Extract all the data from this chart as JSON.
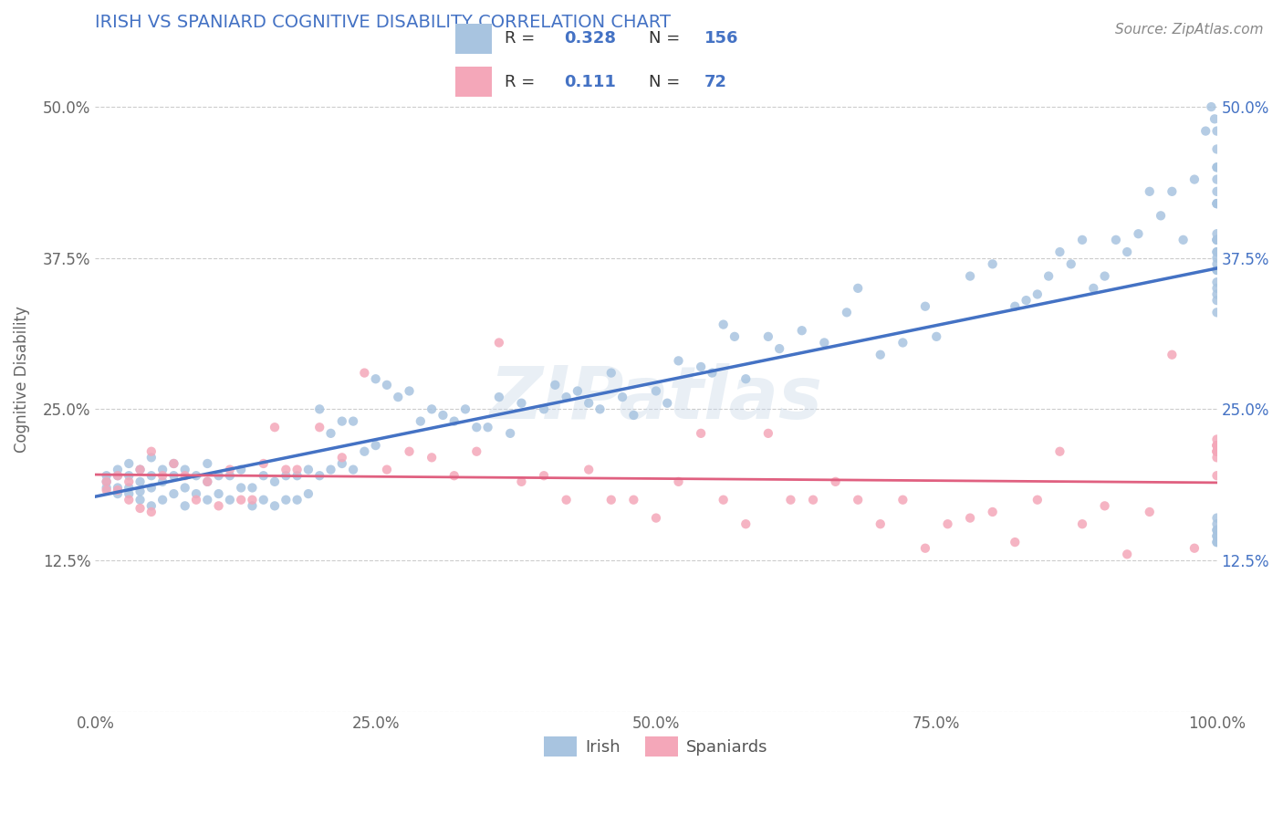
{
  "title": "IRISH VS SPANIARD COGNITIVE DISABILITY CORRELATION CHART",
  "source": "Source: ZipAtlas.com",
  "ylabel": "Cognitive Disability",
  "xlim": [
    0.0,
    1.0
  ],
  "ylim": [
    0.0,
    0.55
  ],
  "xticks": [
    0.0,
    0.25,
    0.5,
    0.75,
    1.0
  ],
  "xtick_labels": [
    "0.0%",
    "25.0%",
    "50.0%",
    "75.0%",
    "100.0%"
  ],
  "yticks": [
    0.0,
    0.125,
    0.25,
    0.375,
    0.5
  ],
  "ytick_labels": [
    "",
    "12.5%",
    "25.0%",
    "37.5%",
    "50.0%"
  ],
  "irish_color": "#a8c4e0",
  "spaniard_color": "#f4a7b9",
  "irish_line_color": "#4472c4",
  "spaniard_line_color": "#e06080",
  "irish_R": "0.328",
  "irish_N": "156",
  "spaniard_R": "0.111",
  "spaniard_N": "72",
  "title_color": "#4472c4",
  "legend_R_N_color": "#4472c4",
  "background_color": "#ffffff",
  "grid_color": "#cccccc",
  "watermark": "ZIPatlas",
  "irish_x": [
    0.01,
    0.01,
    0.01,
    0.02,
    0.02,
    0.02,
    0.02,
    0.03,
    0.03,
    0.03,
    0.03,
    0.04,
    0.04,
    0.04,
    0.04,
    0.05,
    0.05,
    0.05,
    0.05,
    0.06,
    0.06,
    0.06,
    0.07,
    0.07,
    0.07,
    0.08,
    0.08,
    0.08,
    0.09,
    0.09,
    0.1,
    0.1,
    0.1,
    0.11,
    0.11,
    0.12,
    0.12,
    0.13,
    0.13,
    0.14,
    0.14,
    0.15,
    0.15,
    0.16,
    0.16,
    0.17,
    0.17,
    0.18,
    0.18,
    0.19,
    0.19,
    0.2,
    0.2,
    0.21,
    0.21,
    0.22,
    0.22,
    0.23,
    0.23,
    0.24,
    0.25,
    0.25,
    0.26,
    0.27,
    0.28,
    0.29,
    0.3,
    0.31,
    0.32,
    0.33,
    0.34,
    0.35,
    0.36,
    0.37,
    0.38,
    0.4,
    0.41,
    0.42,
    0.43,
    0.44,
    0.45,
    0.46,
    0.47,
    0.48,
    0.5,
    0.51,
    0.52,
    0.54,
    0.55,
    0.56,
    0.57,
    0.58,
    0.6,
    0.61,
    0.63,
    0.65,
    0.67,
    0.68,
    0.7,
    0.72,
    0.74,
    0.75,
    0.78,
    0.8,
    0.82,
    0.83,
    0.84,
    0.85,
    0.86,
    0.87,
    0.88,
    0.89,
    0.9,
    0.91,
    0.92,
    0.93,
    0.94,
    0.95,
    0.96,
    0.97,
    0.98,
    0.99,
    0.995,
    0.998,
    1.0,
    1.0,
    1.0,
    1.0,
    1.0,
    1.0,
    1.0,
    1.0,
    1.0,
    1.0,
    1.0,
    1.0,
    1.0,
    1.0,
    1.0,
    1.0,
    1.0,
    1.0,
    1.0,
    1.0,
    1.0,
    1.0,
    1.0,
    1.0,
    1.0,
    1.0,
    1.0,
    1.0,
    1.0,
    1.0,
    1.0,
    1.0
  ],
  "irish_y": [
    0.195,
    0.19,
    0.185,
    0.2,
    0.195,
    0.185,
    0.18,
    0.205,
    0.195,
    0.185,
    0.18,
    0.2,
    0.19,
    0.182,
    0.175,
    0.21,
    0.195,
    0.185,
    0.17,
    0.2,
    0.19,
    0.175,
    0.205,
    0.195,
    0.18,
    0.2,
    0.185,
    0.17,
    0.195,
    0.18,
    0.205,
    0.19,
    0.175,
    0.195,
    0.18,
    0.195,
    0.175,
    0.2,
    0.185,
    0.185,
    0.17,
    0.195,
    0.175,
    0.19,
    0.17,
    0.195,
    0.175,
    0.195,
    0.175,
    0.2,
    0.18,
    0.25,
    0.195,
    0.23,
    0.2,
    0.24,
    0.205,
    0.24,
    0.2,
    0.215,
    0.275,
    0.22,
    0.27,
    0.26,
    0.265,
    0.24,
    0.25,
    0.245,
    0.24,
    0.25,
    0.235,
    0.235,
    0.26,
    0.23,
    0.255,
    0.25,
    0.27,
    0.26,
    0.265,
    0.255,
    0.25,
    0.28,
    0.26,
    0.245,
    0.265,
    0.255,
    0.29,
    0.285,
    0.28,
    0.32,
    0.31,
    0.275,
    0.31,
    0.3,
    0.315,
    0.305,
    0.33,
    0.35,
    0.295,
    0.305,
    0.335,
    0.31,
    0.36,
    0.37,
    0.335,
    0.34,
    0.345,
    0.36,
    0.38,
    0.37,
    0.39,
    0.35,
    0.36,
    0.39,
    0.38,
    0.395,
    0.43,
    0.41,
    0.43,
    0.39,
    0.44,
    0.48,
    0.5,
    0.49,
    0.48,
    0.465,
    0.45,
    0.43,
    0.42,
    0.44,
    0.39,
    0.42,
    0.38,
    0.42,
    0.34,
    0.395,
    0.35,
    0.39,
    0.365,
    0.45,
    0.38,
    0.375,
    0.37,
    0.345,
    0.33,
    0.39,
    0.355,
    0.365,
    0.15,
    0.14,
    0.145,
    0.16,
    0.155,
    0.15,
    0.145,
    0.14
  ],
  "spaniard_x": [
    0.01,
    0.01,
    0.02,
    0.02,
    0.03,
    0.03,
    0.04,
    0.04,
    0.05,
    0.05,
    0.06,
    0.07,
    0.08,
    0.09,
    0.1,
    0.11,
    0.12,
    0.13,
    0.14,
    0.15,
    0.16,
    0.17,
    0.18,
    0.2,
    0.22,
    0.24,
    0.26,
    0.28,
    0.3,
    0.32,
    0.34,
    0.36,
    0.38,
    0.4,
    0.42,
    0.44,
    0.46,
    0.48,
    0.5,
    0.52,
    0.54,
    0.56,
    0.58,
    0.6,
    0.62,
    0.64,
    0.66,
    0.68,
    0.7,
    0.72,
    0.74,
    0.76,
    0.78,
    0.8,
    0.82,
    0.84,
    0.86,
    0.88,
    0.9,
    0.92,
    0.94,
    0.96,
    0.98,
    1.0,
    1.0,
    1.0,
    1.0,
    1.0,
    1.0,
    1.0,
    1.0,
    1.0
  ],
  "spaniard_y": [
    0.19,
    0.183,
    0.195,
    0.183,
    0.19,
    0.175,
    0.2,
    0.168,
    0.215,
    0.165,
    0.195,
    0.205,
    0.195,
    0.175,
    0.19,
    0.17,
    0.2,
    0.175,
    0.175,
    0.205,
    0.235,
    0.2,
    0.2,
    0.235,
    0.21,
    0.28,
    0.2,
    0.215,
    0.21,
    0.195,
    0.215,
    0.305,
    0.19,
    0.195,
    0.175,
    0.2,
    0.175,
    0.175,
    0.16,
    0.19,
    0.23,
    0.175,
    0.155,
    0.23,
    0.175,
    0.175,
    0.19,
    0.175,
    0.155,
    0.175,
    0.135,
    0.155,
    0.16,
    0.165,
    0.14,
    0.175,
    0.215,
    0.155,
    0.17,
    0.13,
    0.165,
    0.295,
    0.135,
    0.195,
    0.22,
    0.215,
    0.21,
    0.215,
    0.225,
    0.22,
    0.22,
    0.215
  ]
}
